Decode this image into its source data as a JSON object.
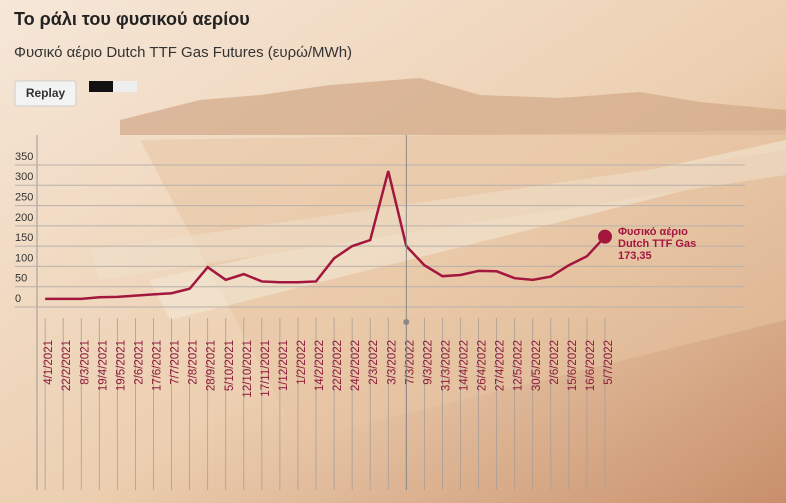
{
  "header": {
    "title": "Το ράλι του φυσικού αερίου",
    "subtitle": "Φυσικό αέριο Dutch TTF Gas Futures (ευρώ/MWh)",
    "replay": "Replay"
  },
  "chart_data": {
    "type": "line",
    "categories": [
      "4/1/2021",
      "22/2/2021",
      "8/3/2021",
      "19/4/2021",
      "19/5/2021",
      "2/6/2021",
      "17/6/2021",
      "7/7/2021",
      "2/8/2021",
      "28/9/2021",
      "5/10/2021",
      "12/10/2021",
      "17/11/2021",
      "1/12/2021",
      "1/2/2022",
      "14/2/2022",
      "22/2/2022",
      "24/2/2022",
      "2/3/2022",
      "3/3/2022",
      "7/3/2022",
      "9/3/2022",
      "31/3/2022",
      "14/4/2022",
      "26/4/2022",
      "27/4/2022",
      "12/5/2022",
      "30/5/2022",
      "2/6/2022",
      "15/6/2022",
      "16/6/2022",
      "5/7/2022"
    ],
    "series": [
      {
        "name": "Φυσικό αέριο Dutch TTF Gas Futures",
        "color": "#a3173f",
        "values": [
          20,
          20,
          20,
          24,
          25,
          28,
          31,
          34,
          45,
          98,
          67,
          81,
          63,
          61,
          61,
          63,
          120,
          150,
          165,
          335,
          150,
          103,
          76,
          79,
          89,
          88,
          71,
          67,
          75,
          103,
          125,
          173.35
        ],
        "value_labels": [
          null,
          null,
          null,
          null,
          null,
          null,
          null,
          null,
          null,
          null,
          null,
          null,
          null,
          null,
          null,
          null,
          null,
          null,
          null,
          null,
          null,
          null,
          null,
          null,
          null,
          null,
          null,
          null,
          null,
          null,
          null,
          "173,35"
        ]
      }
    ],
    "ylim": [
      0,
      350
    ],
    "yticks": [
      0,
      50,
      100,
      150,
      200,
      250,
      300,
      350
    ],
    "grid": true
  }
}
